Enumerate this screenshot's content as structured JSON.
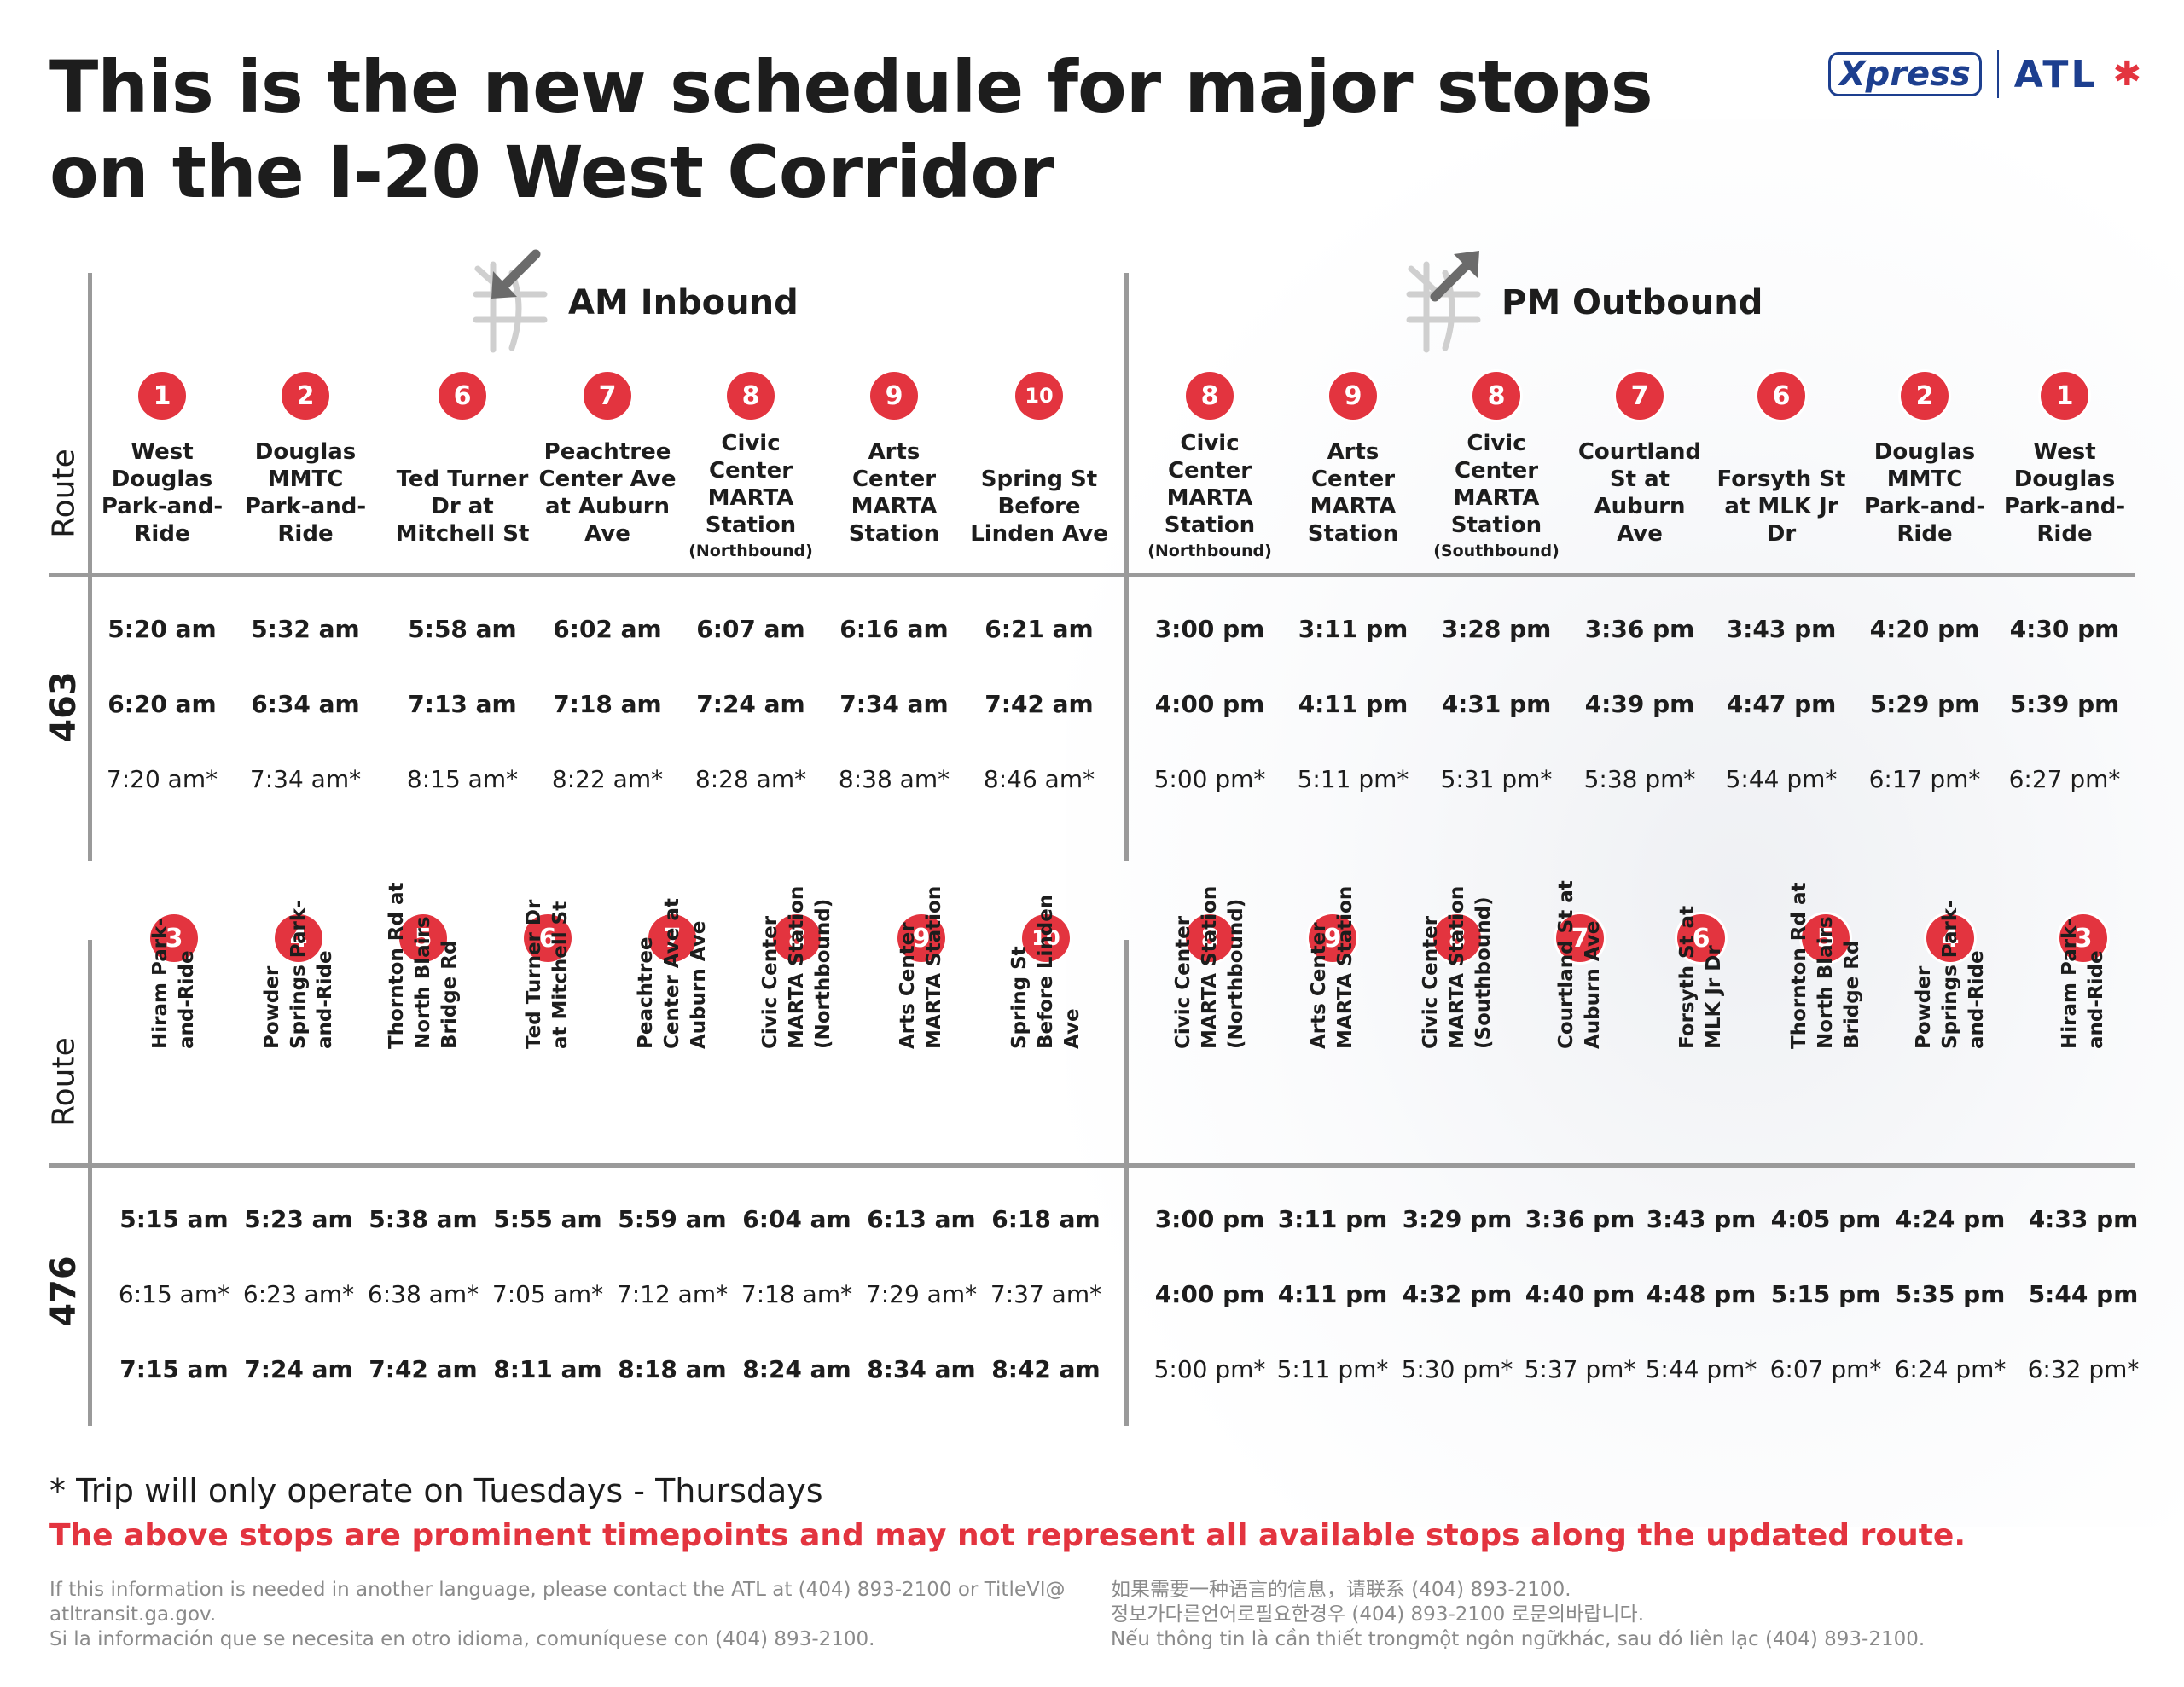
{
  "title_line1": "This is the new schedule for major stops",
  "title_line2": "on the I-20 West Corridor",
  "logo": {
    "left": "Xpress",
    "right": "ATL"
  },
  "colors": {
    "accent": "#e3343f",
    "brand": "#1d3f8f",
    "rule": "#9a9a9a",
    "text": "#1d1d1d"
  },
  "sections": {
    "am": "AM Inbound",
    "pm": "PM Outbound"
  },
  "route_header": "Route",
  "route463": {
    "number": "463",
    "am_stops": [
      {
        "badge": "1",
        "name": "West Douglas Park-and-Ride",
        "sub": ""
      },
      {
        "badge": "2",
        "name": "Douglas MMTC Park-and-Ride",
        "sub": ""
      },
      {
        "badge": "6",
        "name": "Ted Turner Dr at Mitchell St",
        "sub": ""
      },
      {
        "badge": "7",
        "name": "Peachtree Center Ave at Auburn Ave",
        "sub": ""
      },
      {
        "badge": "8",
        "name": "Civic Center MARTA Station",
        "sub": "(Northbound)"
      },
      {
        "badge": "9",
        "name": "Arts Center MARTA Station",
        "sub": ""
      },
      {
        "badge": "10",
        "name": "Spring St Before Linden Ave",
        "sub": ""
      }
    ],
    "pm_stops": [
      {
        "badge": "8",
        "name": "Civic Center MARTA Station",
        "sub": "(Northbound)"
      },
      {
        "badge": "9",
        "name": "Arts Center MARTA Station",
        "sub": ""
      },
      {
        "badge": "8",
        "name": "Civic Center MARTA Station",
        "sub": "(Southbound)"
      },
      {
        "badge": "7",
        "name": "Courtland St at Auburn Ave",
        "sub": ""
      },
      {
        "badge": "6",
        "name": "Forsyth St at MLK Jr Dr",
        "sub": ""
      },
      {
        "badge": "2",
        "name": "Douglas MMTC Park-and-Ride",
        "sub": ""
      },
      {
        "badge": "1",
        "name": "West Douglas Park-and-Ride",
        "sub": ""
      }
    ],
    "am_rows": [
      {
        "bold": true,
        "times": [
          "5:20 am",
          "5:32 am",
          "5:58 am",
          "6:02 am",
          "6:07 am",
          "6:16 am",
          "6:21 am"
        ]
      },
      {
        "bold": true,
        "times": [
          "6:20 am",
          "6:34 am",
          "7:13 am",
          "7:18 am",
          "7:24 am",
          "7:34 am",
          "7:42 am"
        ]
      },
      {
        "bold": false,
        "times": [
          "7:20 am*",
          "7:34 am*",
          "8:15 am*",
          "8:22 am*",
          "8:28 am*",
          "8:38 am*",
          "8:46 am*"
        ]
      }
    ],
    "pm_rows": [
      {
        "bold": true,
        "times": [
          "3:00 pm",
          "3:11 pm",
          "3:28 pm",
          "3:36 pm",
          "3:43 pm",
          "4:20 pm",
          "4:30 pm"
        ]
      },
      {
        "bold": true,
        "times": [
          "4:00 pm",
          "4:11 pm",
          "4:31 pm",
          "4:39 pm",
          "4:47 pm",
          "5:29 pm",
          "5:39 pm"
        ]
      },
      {
        "bold": false,
        "times": [
          "5:00 pm*",
          "5:11 pm*",
          "5:31 pm*",
          "5:38 pm*",
          "5:44 pm*",
          "6:17 pm*",
          "6:27 pm*"
        ]
      }
    ]
  },
  "route476": {
    "number": "476",
    "am_stops": [
      {
        "badge": "3",
        "name": "Hiram Park-and-Ride"
      },
      {
        "badge": "4",
        "name": "Powder Springs Park-and-Ride"
      },
      {
        "badge": "5",
        "name": "Thornton Rd at North Blairs Bridge Rd"
      },
      {
        "badge": "6",
        "name": "Ted Turner Dr at Mitchell St"
      },
      {
        "badge": "7",
        "name": "Peachtree Center Ave at Auburn Ave"
      },
      {
        "badge": "8",
        "name": "Civic Center MARTA Station (Northbound)"
      },
      {
        "badge": "9",
        "name": "Arts Center MARTA Station"
      },
      {
        "badge": "10",
        "name": "Spring St Before Linden Ave"
      }
    ],
    "pm_stops": [
      {
        "badge": "8",
        "name": "Civic Center MARTA Station (Northbound)"
      },
      {
        "badge": "9",
        "name": "Arts Center MARTA Station"
      },
      {
        "badge": "8",
        "name": "Civic Center MARTA Station (Southbound)"
      },
      {
        "badge": "7",
        "name": "Courtland St at Auburn Ave"
      },
      {
        "badge": "6",
        "name": "Forsyth St at MLK Jr Dr"
      },
      {
        "badge": "5",
        "name": "Thornton Rd at North Blairs Bridge Rd"
      },
      {
        "badge": "4",
        "name": "Powder Springs Park-and-Ride"
      },
      {
        "badge": "3",
        "name": "Hiram Park-and-Ride"
      }
    ],
    "am_rows": [
      {
        "bold": true,
        "times": [
          "5:15 am",
          "5:23 am",
          "5:38 am",
          "5:55 am",
          "5:59 am",
          "6:04 am",
          "6:13 am",
          "6:18 am"
        ]
      },
      {
        "bold": false,
        "times": [
          "6:15 am*",
          "6:23 am*",
          "6:38 am*",
          "7:05 am*",
          "7:12 am*",
          "7:18 am*",
          "7:29 am*",
          "7:37 am*"
        ]
      },
      {
        "bold": true,
        "times": [
          "7:15 am",
          "7:24 am",
          "7:42 am",
          "8:11 am",
          "8:18 am",
          "8:24 am",
          "8:34 am",
          "8:42 am"
        ]
      }
    ],
    "pm_rows": [
      {
        "bold": true,
        "times": [
          "3:00 pm",
          "3:11 pm",
          "3:29 pm",
          "3:36 pm",
          "3:43 pm",
          "4:05 pm",
          "4:24 pm",
          "4:33 pm"
        ]
      },
      {
        "bold": true,
        "times": [
          "4:00 pm",
          "4:11 pm",
          "4:32 pm",
          "4:40 pm",
          "4:48 pm",
          "5:15 pm",
          "5:35 pm",
          "5:44 pm"
        ]
      },
      {
        "bold": false,
        "times": [
          "5:00 pm*",
          "5:11 pm*",
          "5:30 pm*",
          "5:37 pm*",
          "5:44 pm*",
          "6:07 pm*",
          "6:24 pm*",
          "6:32 pm*"
        ]
      }
    ]
  },
  "footnote": "* Trip will only operate on Tuesdays - Thursdays",
  "notice": "The above stops are prominent timepoints and may not represent all available stops along the updated route.",
  "language_left": [
    "If this information is needed in another language, please contact the ATL at (404) 893-2100 or TitleVI@",
    "atltransit.ga.gov.",
    "Si la información que se necesita en otro idioma, comuníquese con (404) 893-2100."
  ],
  "language_right": [
    "如果需要一种语言的信息，请联系 (404) 893-2100.",
    "정보가다른언어로필요한경우 (404) 893-2100 로문의바랍니다.",
    "Nếu thông tin là cần thiết trongmột ngôn ngữkhác, sau đó liên lạc (404) 893-2100."
  ]
}
